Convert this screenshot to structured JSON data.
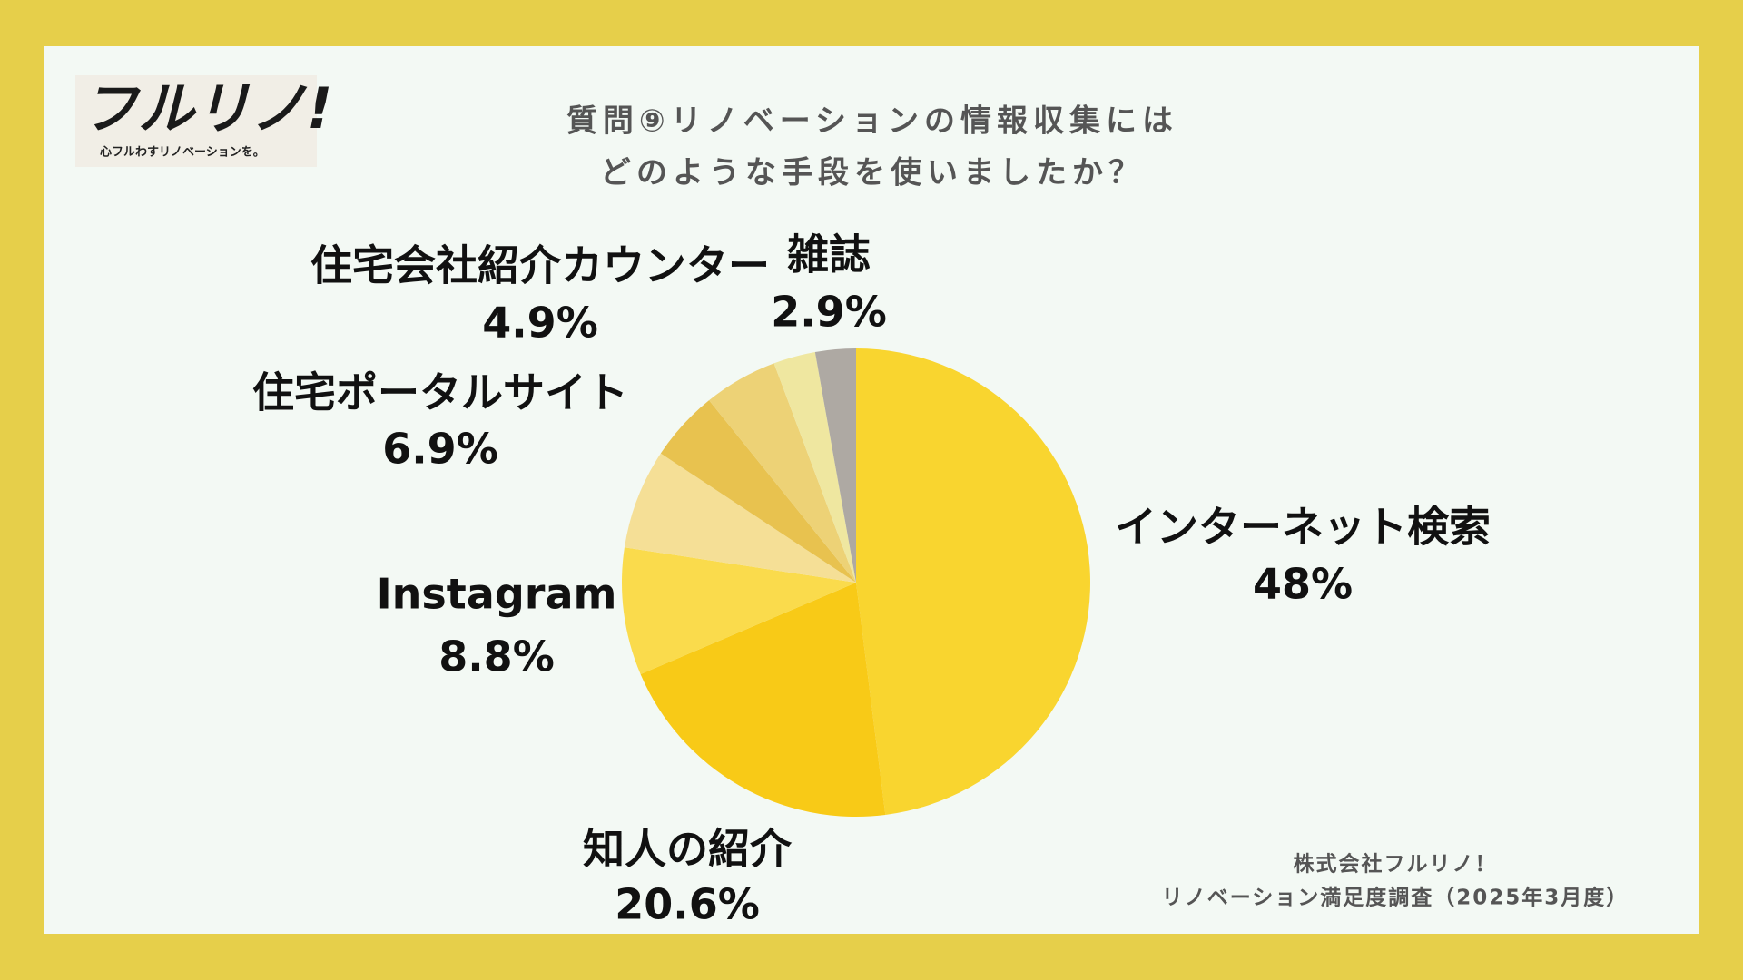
{
  "logo": {
    "mark": "フルリノ!",
    "tagline": "心フルわすリノベーションを。"
  },
  "chart_data": {
    "type": "pie",
    "title": [
      "質問⑨リノベーションの情報収集には",
      "どのような手段を使いましたか？"
    ],
    "categories": [
      "インターネット検索",
      "知人の紹介",
      "Instagram",
      "住宅ポータルサイト",
      "住宅会社紹介カウンター",
      null,
      "雑誌",
      null
    ],
    "values": [
      48,
      20.6,
      8.8,
      6.9,
      4.9,
      5.1,
      2.9,
      2.8
    ],
    "value_labels": [
      "48%",
      "20.6%",
      "8.8%",
      "6.9%",
      "4.9%",
      null,
      "2.9%",
      null
    ],
    "colors": [
      "#f9d52f",
      "#f8ca17",
      "#fadb4c",
      "#f5df96",
      "#e8c24f",
      "#edd276",
      "#efe7a0",
      "#aea9a3"
    ],
    "source": [
      "株式会社フルリノ！",
      "リノベーション満足度調査（2025年3月度）"
    ]
  }
}
